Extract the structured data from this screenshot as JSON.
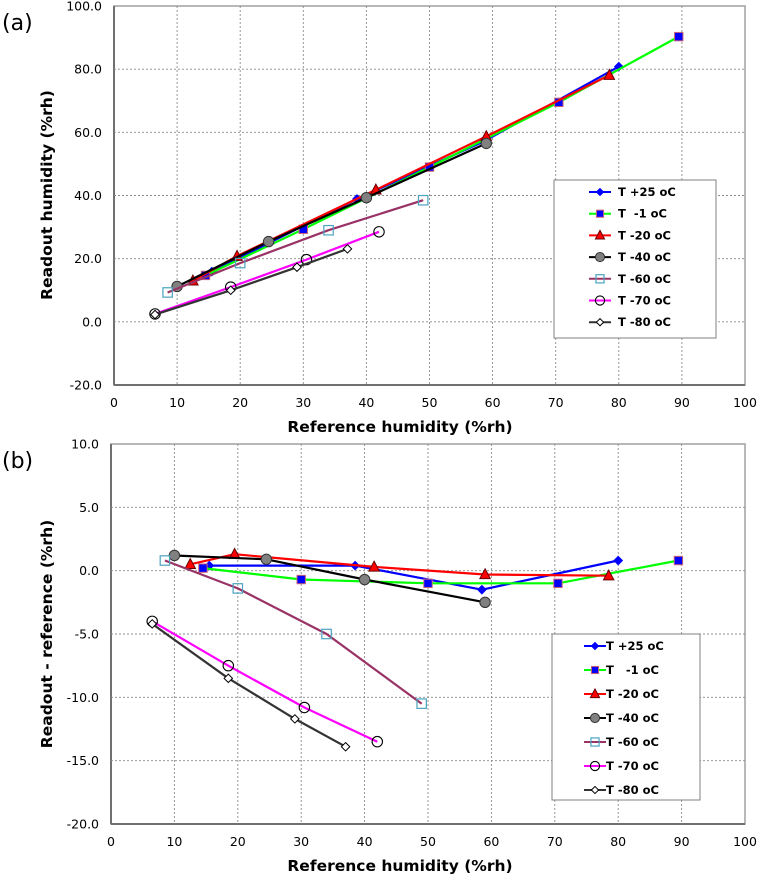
{
  "chart_data": [
    {
      "type": "line",
      "panel_label": "(a)",
      "title": "",
      "xlabel": "Reference humidity (%rh)",
      "ylabel": "Readout  humidity (%rh)",
      "xlim": [
        0,
        100
      ],
      "ylim": [
        -20,
        100
      ],
      "xticks": [
        0,
        10,
        20,
        30,
        40,
        50,
        60,
        70,
        80,
        90,
        100
      ],
      "xtick_labels": [
        "0",
        "10",
        "20",
        "30",
        "40",
        "50",
        "60",
        "70",
        "80",
        "90",
        "100"
      ],
      "yticks": [
        -20,
        0,
        20,
        40,
        60,
        80,
        100
      ],
      "ytick_labels": [
        "-20.0",
        "0.0",
        "20.0",
        "40.0",
        "60.0",
        "80.0",
        "100.0"
      ],
      "grid": true,
      "legend_position": "center-right",
      "series": [
        {
          "name": "T +25 oC",
          "color": "#0000ff",
          "marker": "diamond",
          "x": [
            15.5,
            38.5,
            58.5,
            80
          ],
          "y": [
            15.9,
            38.9,
            57.0,
            80.8
          ]
        },
        {
          "name": "T  -1 oC",
          "color": "#00ff00",
          "marker": "square",
          "x": [
            14.5,
            30,
            50,
            70.5,
            89.5
          ],
          "y": [
            14.7,
            29.3,
            49.0,
            69.5,
            90.3
          ]
        },
        {
          "name": "T -20 oC",
          "color": "#ff0000",
          "marker": "triangle",
          "x": [
            12.5,
            19.5,
            41.5,
            59,
            78.5
          ],
          "y": [
            13.0,
            20.8,
            41.8,
            58.7,
            78.1
          ]
        },
        {
          "name": "T -40 oC",
          "color": "#000000",
          "marker": "circle-filled",
          "x": [
            10,
            24.5,
            40,
            59
          ],
          "y": [
            11.2,
            25.4,
            39.3,
            56.5
          ]
        },
        {
          "name": "T -60 oC",
          "color": "#993366",
          "marker": "square-open",
          "x": [
            8.5,
            20,
            34,
            49
          ],
          "y": [
            9.3,
            18.6,
            29.0,
            38.5
          ]
        },
        {
          "name": "T -70 oC",
          "color": "#ff00ff",
          "marker": "circle-open",
          "x": [
            6.5,
            18.5,
            30.5,
            42
          ],
          "y": [
            2.5,
            11.0,
            19.7,
            28.5
          ]
        },
        {
          "name": "T -80 oC",
          "color": "#333333",
          "marker": "diamond-open",
          "x": [
            6.5,
            18.5,
            29,
            37
          ],
          "y": [
            2.3,
            10.0,
            17.3,
            23.1
          ]
        }
      ]
    },
    {
      "type": "line",
      "panel_label": "(b)",
      "title": "",
      "xlabel": "Reference humidity (%rh)",
      "ylabel": "Readout - reference (%rh)",
      "xlim": [
        0,
        100
      ],
      "ylim": [
        -20,
        10
      ],
      "xticks": [
        0,
        10,
        20,
        30,
        40,
        50,
        60,
        70,
        80,
        90,
        100
      ],
      "xtick_labels": [
        "0",
        "10",
        "20",
        "30",
        "40",
        "50",
        "60",
        "70",
        "80",
        "90",
        "100"
      ],
      "yticks": [
        -20,
        -15,
        -10,
        -5,
        0,
        5,
        10
      ],
      "ytick_labels": [
        "-20.0",
        "-15.0",
        "-10.0",
        "-5.0",
        "0.0",
        "5.0",
        "10.0"
      ],
      "grid": true,
      "legend_position": "bottom-right",
      "series": [
        {
          "name": "T +25 oC",
          "color": "#0000ff",
          "marker": "diamond",
          "x": [
            15.5,
            38.5,
            58.5,
            80
          ],
          "y": [
            0.4,
            0.4,
            -1.5,
            0.8
          ]
        },
        {
          "name": "T   -1 oC",
          "color": "#00ff00",
          "marker": "square",
          "x": [
            14.5,
            30,
            50,
            70.5,
            89.5
          ],
          "y": [
            0.2,
            -0.7,
            -1.0,
            -1.0,
            0.8
          ]
        },
        {
          "name": "T -20 oC",
          "color": "#ff0000",
          "marker": "triangle",
          "x": [
            12.5,
            19.5,
            41.5,
            59,
            78.5
          ],
          "y": [
            0.5,
            1.3,
            0.3,
            -0.3,
            -0.4
          ]
        },
        {
          "name": "T -40 oC",
          "color": "#000000",
          "marker": "circle-filled",
          "x": [
            10,
            24.5,
            40,
            59
          ],
          "y": [
            1.2,
            0.9,
            -0.7,
            -2.5
          ]
        },
        {
          "name": "T -60 oC",
          "color": "#993366",
          "marker": "square-open",
          "x": [
            8.5,
            20,
            34,
            49
          ],
          "y": [
            0.8,
            -1.4,
            -5.0,
            -10.5
          ]
        },
        {
          "name": "T -70 oC",
          "color": "#ff00ff",
          "marker": "circle-open",
          "x": [
            6.5,
            18.5,
            30.5,
            42
          ],
          "y": [
            -4.0,
            -7.5,
            -10.8,
            -13.5
          ]
        },
        {
          "name": "T -80 oC",
          "color": "#333333",
          "marker": "diamond-open",
          "x": [
            6.5,
            18.5,
            29,
            37
          ],
          "y": [
            -4.2,
            -8.5,
            -11.7,
            -13.9
          ]
        }
      ]
    }
  ]
}
